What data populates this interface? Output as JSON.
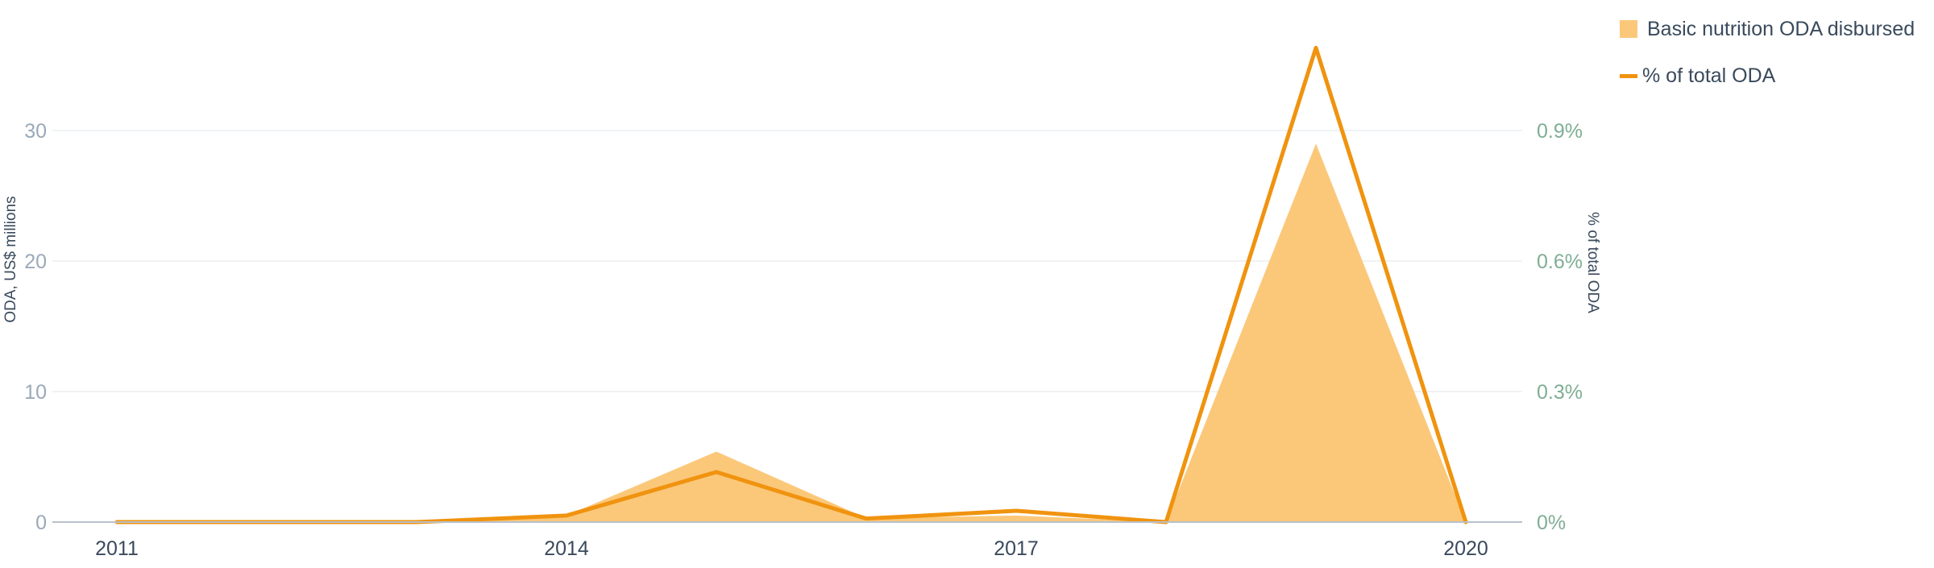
{
  "chart_data": {
    "type": "area",
    "x": [
      2011,
      2012,
      2013,
      2014,
      2015,
      2016,
      2017,
      2018,
      2019,
      2020
    ],
    "x_tick_labels": [
      "2011",
      "2014",
      "2017",
      "2020"
    ],
    "xlim": [
      2011,
      2020
    ],
    "series": [
      {
        "name": "Basic nutrition ODA disbursed",
        "type": "area",
        "axis": "left",
        "values": [
          0,
          0,
          0,
          0.5,
          5.4,
          0.3,
          0.5,
          0,
          29.0,
          0
        ]
      },
      {
        "name": "% of total ODA",
        "type": "line",
        "axis": "right",
        "values": [
          0,
          0,
          0,
          0.015,
          0.115,
          0.008,
          0.026,
          0,
          1.09,
          0
        ]
      }
    ],
    "y_left": {
      "label": "ODA, US$ millions",
      "ylim": [
        0,
        30
      ],
      "ticks": [
        0,
        10,
        20,
        30
      ],
      "tick_labels": [
        "0",
        "10",
        "20",
        "30"
      ]
    },
    "y_right": {
      "label": "% of total ODA",
      "ylim": [
        0,
        0.9
      ],
      "ticks": [
        0,
        0.3,
        0.6,
        0.9
      ],
      "tick_labels": [
        "0%",
        "0.3%",
        "0.6%",
        "0.9%"
      ]
    },
    "legend": "top-right",
    "grid": true,
    "colors": {
      "area": "#fbc87a",
      "line": "#f0930f",
      "left_tick": "#9aa9b8",
      "right_tick": "#7fae93",
      "x_tick": "#3a4a5c",
      "grid": "#ebeef1",
      "axis": "#b8c1ca"
    }
  }
}
